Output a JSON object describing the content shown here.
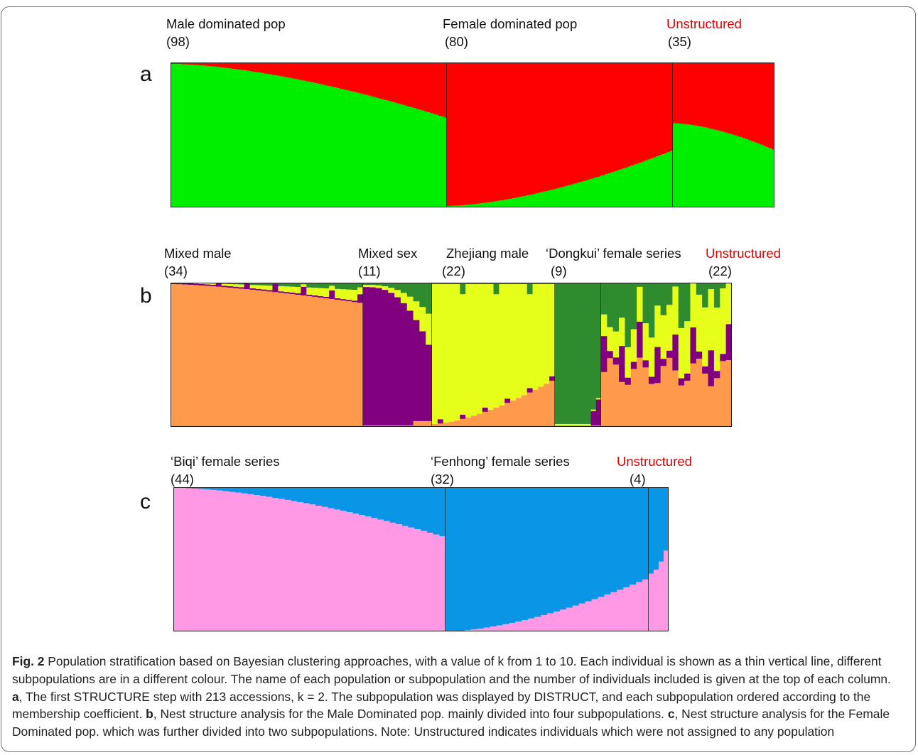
{
  "panels": {
    "a": {
      "letter": "a",
      "groups": [
        {
          "name": "Male dominated pop",
          "count": "(98)",
          "color": "#000000"
        },
        {
          "name": "Female dominated pop",
          "count": "(80)",
          "color": "#000000"
        },
        {
          "name": "Unstructured",
          "count": "(35)",
          "color": "#e10000"
        }
      ]
    },
    "b": {
      "letter": "b",
      "groups": [
        {
          "name": "Mixed male",
          "count": "(34)",
          "color": "#000000"
        },
        {
          "name": "Mixed sex",
          "count": "(11)",
          "color": "#000000"
        },
        {
          "name": "Zhejiang male",
          "count": "(22)",
          "color": "#000000"
        },
        {
          "name": "‘Dongkui’ female series",
          "count": "(9)",
          "color": "#000000"
        },
        {
          "name": "Unstructured",
          "count": "(22)",
          "color": "#e10000"
        }
      ]
    },
    "c": {
      "letter": "c",
      "groups": [
        {
          "name": "‘Biqi’ female series",
          "count": "(44)",
          "color": "#000000"
        },
        {
          "name": "‘Fenhong’  female series",
          "count": "(32)",
          "color": "#000000"
        },
        {
          "name": "Unstructured",
          "count": "(4)",
          "color": "#e10000"
        }
      ]
    }
  },
  "chart_data": [
    {
      "type": "bar",
      "stacked": true,
      "panel": "a",
      "k": 2,
      "ylim": [
        0,
        1
      ],
      "cluster_colors": [
        "#00ee00",
        "#ff0000"
      ],
      "groups": [
        {
          "name": "Male dominated pop",
          "n": 98,
          "lower_share_start": 0.99,
          "lower_share_end": 0.62
        },
        {
          "name": "Female dominated pop",
          "n": 80,
          "lower_share_start": 0.01,
          "lower_share_end": 0.39
        },
        {
          "name": "Unstructured",
          "n": 35,
          "lower_share_start": 0.58,
          "lower_share_end": 0.4
        }
      ]
    },
    {
      "type": "bar",
      "stacked": true,
      "panel": "b",
      "cluster_colors": [
        "#ff9a4d",
        "#800080",
        "#e6ff1a",
        "#2e8b2e"
      ],
      "groups": [
        {
          "name": "Mixed male",
          "n": 34
        },
        {
          "name": "Mixed sex",
          "n": 11
        },
        {
          "name": "Zhejiang male",
          "n": 22
        },
        {
          "name": "‘Dongkui’ female series",
          "n": 9
        },
        {
          "name": "Unstructured",
          "n": 22
        }
      ]
    },
    {
      "type": "bar",
      "stacked": true,
      "panel": "c",
      "k": 2,
      "ylim": [
        0,
        1
      ],
      "cluster_colors": [
        "#ff99e6",
        "#0a96e6"
      ],
      "groups": [
        {
          "name": "‘Biqi’ female series",
          "n": 44,
          "lower_share_start": 0.995,
          "lower_share_end": 0.66
        },
        {
          "name": "‘Fenhong’  female series",
          "n": 32,
          "lower_share_start": 0.0,
          "lower_share_end": 0.36
        },
        {
          "name": "Unstructured",
          "n": 4,
          "lower_share_start": 0.4,
          "lower_share_end": 0.56
        }
      ]
    }
  ],
  "caption": {
    "label": "Fig. 2",
    "intro": " Population stratification based on Bayesian clustering approaches, with a value of k from 1 to 10. Each individual is shown as a thin vertical line, different subpopulations are in a different colour. The name of each population or subpopulation and the number of individuals included is given at the top of each column. ",
    "a_label": "a",
    "a_text": ", The first STRUCTURE step with 213 accessions, k = 2. The subpopulation was displayed by DISTRUCT, and each subpopulation ordered according to the membership coefficient. ",
    "b_label": "b",
    "b_text": ", Nest structure analysis for the Male Dominated pop. mainly divided into four subpopulations. ",
    "c_label": "c",
    "c_text": ", Nest structure analysis for the Female Dominated pop. which was further divided into two subpopulations. Note: Unstructured indicates individuals which were not assigned to any population"
  }
}
